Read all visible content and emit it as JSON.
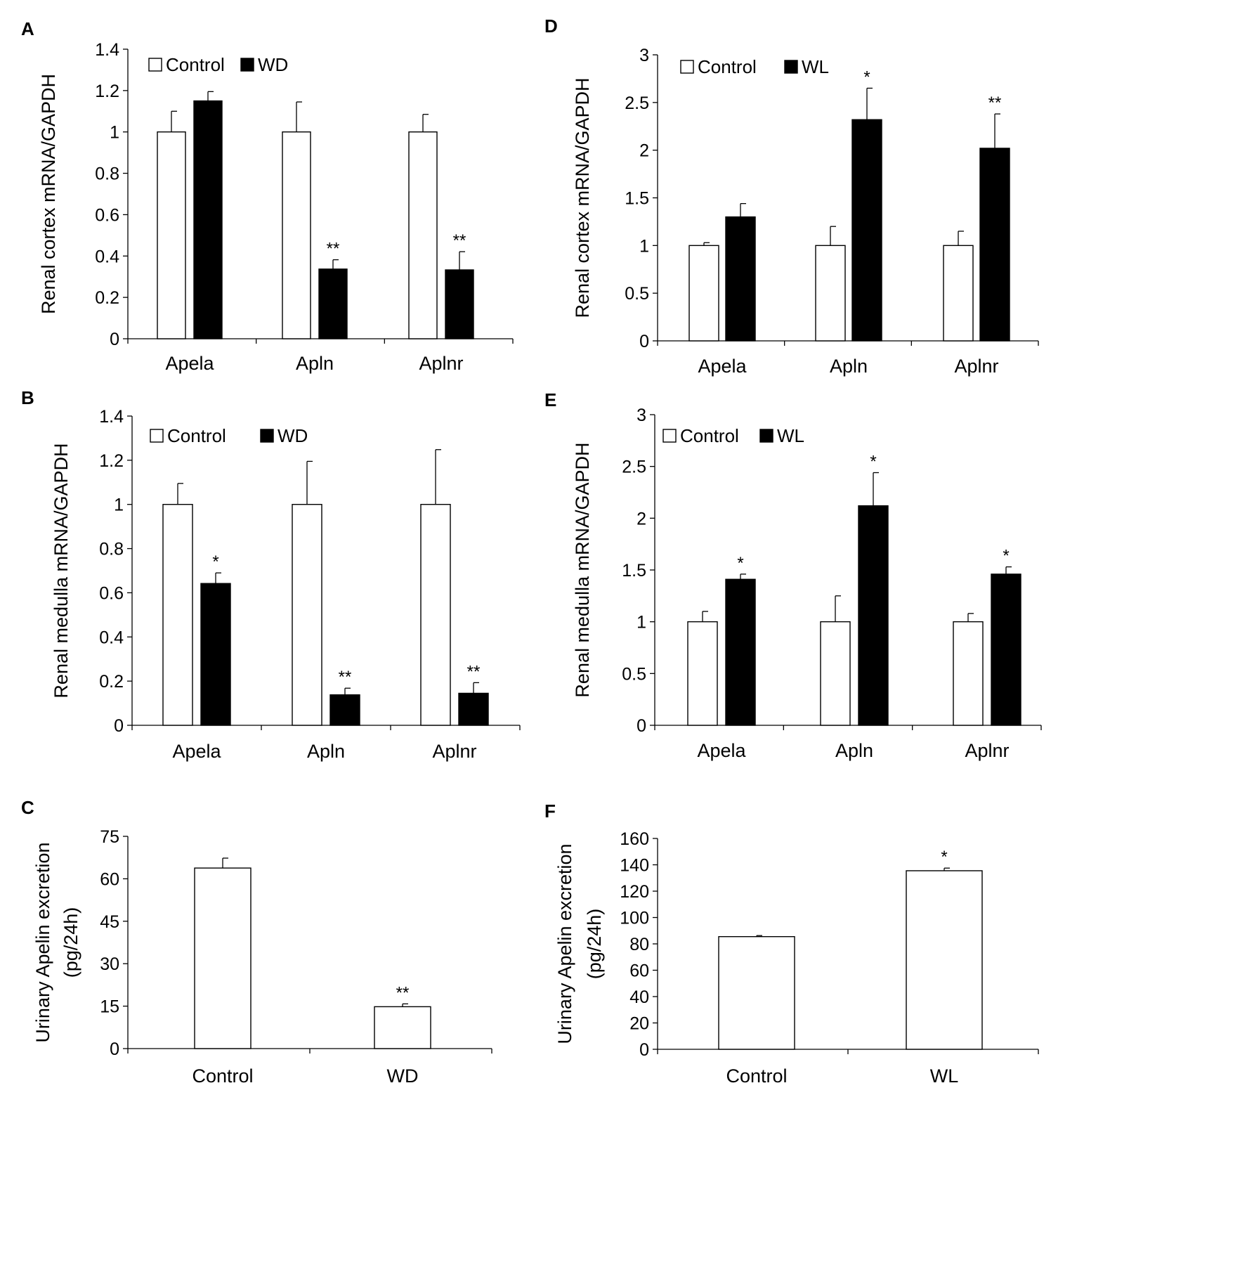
{
  "colors": {
    "control": "#ffffff",
    "treated": "#000000",
    "stroke": "#000000"
  },
  "chart_data": [
    {
      "panel": "A",
      "type": "bar",
      "ylabel": "Renal cortex mRNA/GAPDH",
      "ylim": [
        0,
        1.4
      ],
      "yticks": [
        "0",
        "0.2",
        "0.4",
        "0.6",
        "0.8",
        "1",
        "1.2",
        "1.4"
      ],
      "categories": [
        "Apela",
        "Apln",
        "Aplnr"
      ],
      "legend": [
        "Control",
        "WD"
      ],
      "series": [
        {
          "name": "Control",
          "values": [
            1.0,
            1.0,
            1.0
          ],
          "errors": [
            0.1,
            0.145,
            0.085
          ],
          "sig": [
            "",
            "",
            ""
          ]
        },
        {
          "name": "WD",
          "values": [
            1.15,
            0.337,
            0.333
          ],
          "errors": [
            0.045,
            0.045,
            0.088
          ],
          "sig": [
            "",
            "**",
            "**"
          ]
        }
      ]
    },
    {
      "panel": "B",
      "type": "bar",
      "ylabel": "Renal medulla mRNA/GAPDH",
      "ylim": [
        0,
        1.4
      ],
      "yticks": [
        "0",
        "0.2",
        "0.4",
        "0.6",
        "0.8",
        "1",
        "1.2",
        "1.4"
      ],
      "categories": [
        "Apela",
        "Apln",
        "Aplnr"
      ],
      "legend": [
        "Control",
        "WD"
      ],
      "series": [
        {
          "name": "Control",
          "values": [
            1.0,
            1.0,
            1.0
          ],
          "errors": [
            0.095,
            0.195,
            0.248
          ],
          "sig": [
            "",
            "",
            ""
          ]
        },
        {
          "name": "WD",
          "values": [
            0.642,
            0.138,
            0.145
          ],
          "errors": [
            0.048,
            0.03,
            0.048
          ],
          "sig": [
            "*",
            "**",
            "**"
          ]
        }
      ]
    },
    {
      "panel": "C",
      "type": "bar",
      "ylabel_lines": [
        "Urinary Apelin excretion",
        "(pg/24h)"
      ],
      "ylim": [
        0,
        75
      ],
      "yticks": [
        "0",
        "15",
        "30",
        "45",
        "60",
        "75"
      ],
      "categories": [
        "Control",
        "WD"
      ],
      "values": [
        63.8,
        14.8
      ],
      "errors": [
        3.5,
        1.0
      ],
      "sig": [
        "",
        "**"
      ]
    },
    {
      "panel": "D",
      "type": "bar",
      "ylabel": "Renal cortex mRNA/GAPDH",
      "ylim": [
        0,
        3
      ],
      "yticks": [
        "0",
        "0.5",
        "1",
        "1.5",
        "2",
        "2.5",
        "3"
      ],
      "categories": [
        "Apela",
        "Apln",
        "Aplnr"
      ],
      "legend": [
        "Control",
        "WL"
      ],
      "series": [
        {
          "name": "Control",
          "values": [
            1.0,
            1.0,
            1.0
          ],
          "errors": [
            0.03,
            0.2,
            0.15
          ],
          "sig": [
            "",
            "",
            ""
          ]
        },
        {
          "name": "WL",
          "values": [
            1.3,
            2.32,
            2.02
          ],
          "errors": [
            0.14,
            0.33,
            0.36
          ],
          "sig": [
            "",
            "*",
            "**"
          ]
        }
      ]
    },
    {
      "panel": "E",
      "type": "bar",
      "ylabel": "Renal medulla mRNA/GAPDH",
      "ylim": [
        0,
        3
      ],
      "yticks": [
        "0",
        "0.5",
        "1",
        "1.5",
        "2",
        "2.5",
        "3"
      ],
      "categories": [
        "Apela",
        "Apln",
        "Aplnr"
      ],
      "legend": [
        "Control",
        "WL"
      ],
      "series": [
        {
          "name": "Control",
          "values": [
            1.0,
            1.0,
            1.0
          ],
          "errors": [
            0.1,
            0.25,
            0.08
          ],
          "sig": [
            "",
            "",
            ""
          ]
        },
        {
          "name": "WL",
          "values": [
            1.41,
            2.12,
            1.46
          ],
          "errors": [
            0.05,
            0.32,
            0.07
          ],
          "sig": [
            "*",
            "*",
            "*"
          ]
        }
      ]
    },
    {
      "panel": "F",
      "type": "bar",
      "ylabel_lines": [
        "Urinary Apelin excretion",
        "(pg/24h)"
      ],
      "ylim": [
        0,
        160
      ],
      "yticks": [
        "0",
        "20",
        "40",
        "60",
        "80",
        "100",
        "120",
        "140",
        "160"
      ],
      "categories": [
        "Control",
        "WL"
      ],
      "values": [
        85.5,
        135.5
      ],
      "errors": [
        0.8,
        2.0
      ],
      "sig": [
        "",
        "*"
      ]
    }
  ]
}
